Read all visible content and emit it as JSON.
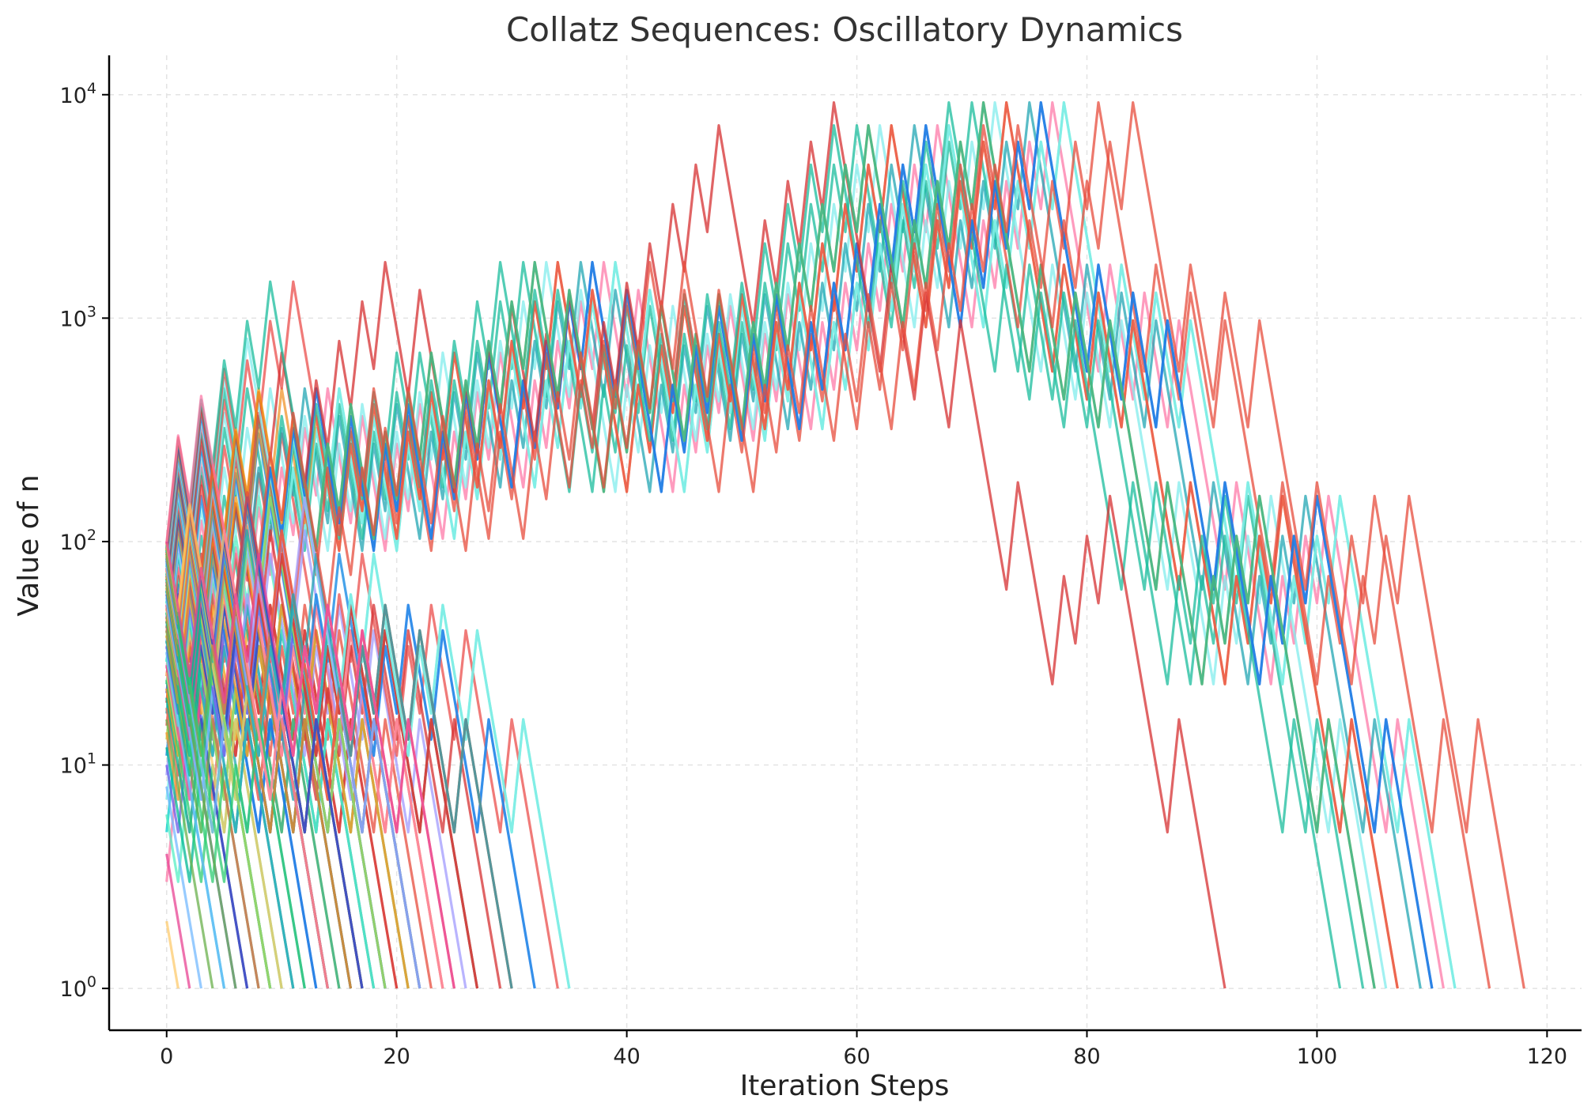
{
  "chart_data": {
    "type": "line",
    "title": "Collatz Sequences: Oscillatory Dynamics",
    "xlabel": "Iteration Steps",
    "ylabel": "Value of n",
    "y_scale": "log",
    "xlim": [
      -5,
      123
    ],
    "ylim": [
      0.65,
      15000
    ],
    "x_ticks": [
      0,
      20,
      40,
      60,
      80,
      100,
      120
    ],
    "y_ticks": [
      1,
      10,
      100,
      1000,
      10000
    ],
    "y_tick_labels": [
      {
        "base": "10",
        "exp": "0"
      },
      {
        "base": "10",
        "exp": "1"
      },
      {
        "base": "10",
        "exp": "2"
      },
      {
        "base": "10",
        "exp": "3"
      },
      {
        "base": "10",
        "exp": "4"
      }
    ],
    "grid": true,
    "legend": "none",
    "x": "iteration step index (0, 1, 2, ...)",
    "y": "successive Collatz values n",
    "series_start_values": [
      2,
      3,
      4,
      5,
      6,
      7,
      8,
      9,
      10,
      11,
      12,
      13,
      14,
      15,
      16,
      17,
      18,
      19,
      20,
      21,
      22,
      23,
      24,
      25,
      26,
      27,
      28,
      29,
      30,
      31,
      32,
      33,
      34,
      35,
      36,
      37,
      38,
      39,
      40,
      41,
      42,
      43,
      44,
      45,
      46,
      47,
      48,
      49,
      50,
      51,
      52,
      53,
      54,
      55,
      56,
      57,
      58,
      59,
      60,
      61,
      62,
      63,
      64,
      65,
      66,
      67,
      68,
      69,
      70,
      71,
      72,
      73,
      74,
      75,
      76,
      77,
      78,
      79,
      80,
      81,
      82,
      83,
      84,
      85,
      86,
      87,
      88,
      89,
      90,
      91,
      92,
      93,
      94,
      95,
      96,
      97,
      98,
      99,
      100
    ],
    "colors": [
      "#fdcb6e",
      "#fd79a8",
      "#e84393",
      "#00cec9",
      "#55efc4",
      "#81ecec",
      "#74b9ff",
      "#a29bfe",
      "#6c5ce7",
      "#0984e3",
      "#00b894",
      "#badc58",
      "#f0932b",
      "#eb4d4b",
      "#6ab04c",
      "#22a6b3",
      "#e17055",
      "#d63031",
      "#00b894",
      "#4834d4",
      "#f39c12",
      "#1abc9c",
      "#2ecc71",
      "#e74c3c"
    ]
  }
}
